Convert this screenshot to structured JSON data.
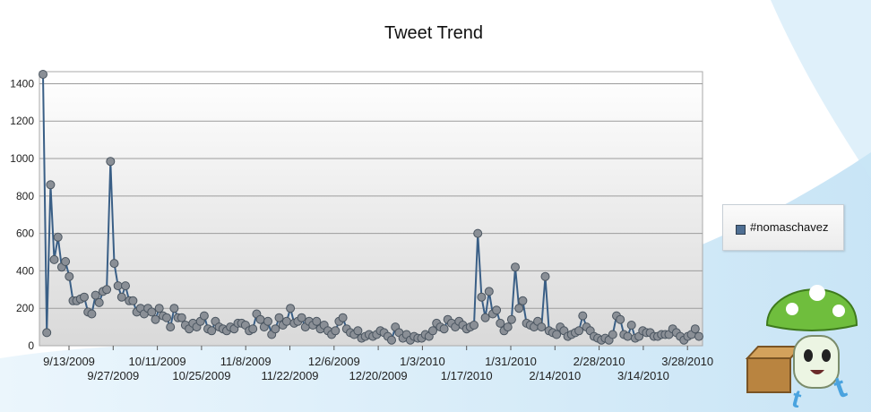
{
  "chart_data": {
    "type": "line",
    "title": "Tweet Trend",
    "xlabel": "",
    "ylabel": "",
    "ylim": [
      0,
      1450
    ],
    "yticks": [
      0,
      200,
      400,
      600,
      800,
      1000,
      1200,
      1400
    ],
    "grid": true,
    "legend_position": "right",
    "x_tick_labels_row1": [
      "9/13/2009",
      "10/11/2009",
      "11/8/2009",
      "12/6/2009",
      "1/3/2010",
      "1/31/2010",
      "2/28/2010",
      "3/28/2010"
    ],
    "x_tick_labels_row2": [
      "9/27/2009",
      "10/25/2009",
      "11/22/2009",
      "12/20/2009",
      "1/17/2010",
      "2/14/2010",
      "3/14/2010"
    ],
    "series": [
      {
        "name": "#nomaschavez",
        "color": "#3a5f86",
        "marker_color": "#8a8f96",
        "values": [
          1450,
          70,
          860,
          460,
          580,
          420,
          450,
          370,
          240,
          240,
          250,
          260,
          180,
          170,
          270,
          230,
          290,
          300,
          985,
          440,
          320,
          260,
          320,
          240,
          240,
          180,
          200,
          170,
          200,
          180,
          140,
          200,
          160,
          150,
          100,
          200,
          150,
          150,
          110,
          90,
          120,
          100,
          130,
          160,
          90,
          80,
          130,
          100,
          90,
          80,
          100,
          90,
          120,
          120,
          110,
          80,
          90,
          170,
          140,
          100,
          130,
          60,
          90,
          150,
          110,
          130,
          200,
          120,
          130,
          150,
          100,
          130,
          110,
          130,
          90,
          110,
          80,
          60,
          80,
          130,
          150,
          90,
          70,
          60,
          80,
          40,
          50,
          60,
          50,
          60,
          80,
          70,
          50,
          30,
          100,
          70,
          40,
          60,
          30,
          50,
          40,
          40,
          60,
          50,
          80,
          120,
          100,
          90,
          140,
          120,
          100,
          130,
          110,
          90,
          100,
          110,
          600,
          260,
          150,
          290,
          170,
          190,
          120,
          80,
          100,
          140,
          420,
          200,
          240,
          120,
          110,
          100,
          130,
          100,
          370,
          80,
          70,
          60,
          100,
          80,
          50,
          60,
          70,
          80,
          160,
          100,
          80,
          50,
          40,
          30,
          40,
          30,
          60,
          160,
          140,
          60,
          50,
          110,
          40,
          50,
          80,
          70,
          70,
          50,
          50,
          60,
          60,
          60,
          90,
          70,
          50,
          30,
          50,
          60,
          90,
          50
        ]
      }
    ]
  },
  "legend": {
    "label": "#nomaschavez"
  }
}
